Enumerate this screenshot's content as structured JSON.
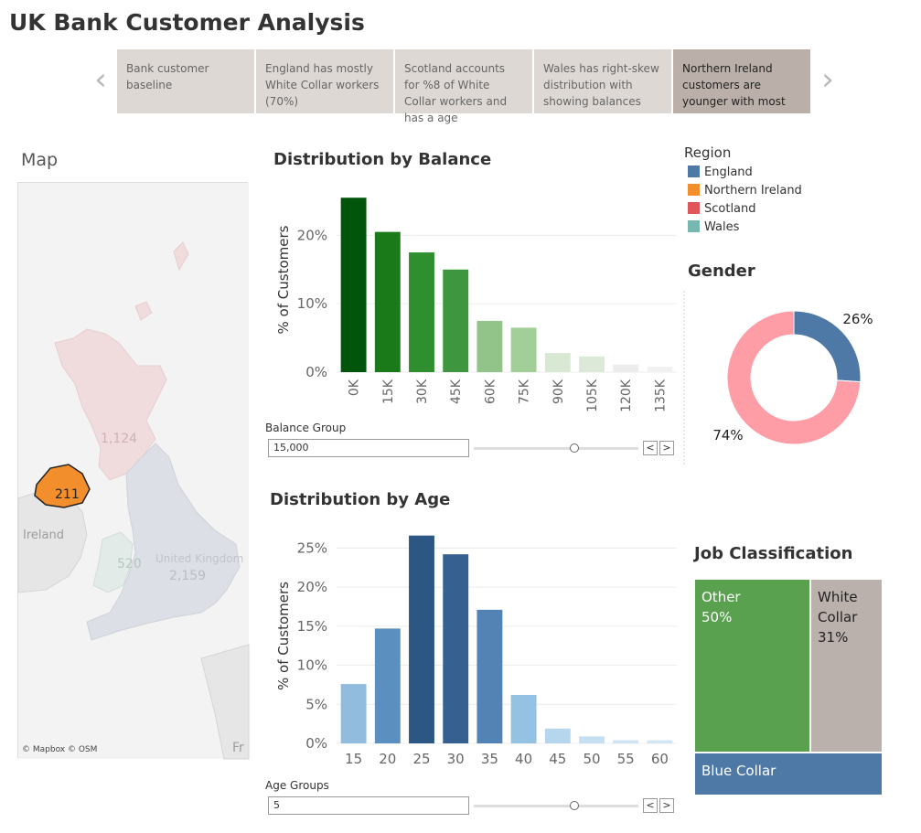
{
  "title": "UK Bank Customer Analysis",
  "story_points": [
    {
      "label": "Bank customer baseline"
    },
    {
      "label": "England has mostly White Collar workers (70%)"
    },
    {
      "label": "Scotland accounts for %8 of White Collar workers and has a age"
    },
    {
      "label": "Wales has right-skew distribution with showing balances"
    },
    {
      "label": "Northern Ireland customers are younger with most"
    }
  ],
  "story_nav": {
    "prev": "‹",
    "next": "›"
  },
  "map": {
    "title": "Map",
    "credit": "© Mapbox © OSM",
    "labels": {
      "scotland": "1,124",
      "ni": "211",
      "wales": "520",
      "england": "2,159",
      "ireland": "Ireland",
      "uk": "United Kingdom",
      "fr": "Fr"
    },
    "highlight_color": "#f28e2b"
  },
  "balance": {
    "title": "Distribution by Balance",
    "param_label": "Balance Group",
    "param_value": "15,000",
    "slider_fraction": 0.61
  },
  "age": {
    "title": "Distribution by Age",
    "param_label": "Age Groups",
    "param_value": "5",
    "slider_fraction": 0.61
  },
  "legend": {
    "title": "Region",
    "items": [
      {
        "label": "England",
        "color": "#4e79a7"
      },
      {
        "label": "Northern Ireland",
        "color": "#f28e2b"
      },
      {
        "label": "Scotland",
        "color": "#e15759"
      },
      {
        "label": "Wales",
        "color": "#76b7b2"
      }
    ]
  },
  "gender_title": "Gender",
  "job": {
    "title": "Job Classification",
    "cells": [
      {
        "label": "Other",
        "value": "50%",
        "color": "#59a14f"
      },
      {
        "label": "White Collar",
        "value": "31%",
        "color": "#bab0ac"
      },
      {
        "label": "Blue Collar",
        "value": "",
        "color": "#4e79a7"
      }
    ]
  },
  "chart_data": [
    {
      "type": "bar",
      "title": "Distribution by Balance",
      "xlabel": "",
      "ylabel": "% of Customers",
      "categories": [
        "0K",
        "15K",
        "30K",
        "45K",
        "60K",
        "75K",
        "90K",
        "105K",
        "120K",
        "135K"
      ],
      "values": [
        25.5,
        20.5,
        17.5,
        15.0,
        7.5,
        6.5,
        2.8,
        2.3,
        1.1,
        0.8
      ],
      "colors": [
        "#00550a",
        "#1a7a1a",
        "#2f8f2f",
        "#3e963e",
        "#92c48a",
        "#a2cf98",
        "#d8e8d3",
        "#dde9d8",
        "#ececec",
        "#f1f1f1"
      ],
      "yticks": [
        0,
        10,
        20
      ],
      "ytick_labels": [
        "0%",
        "10%",
        "20%"
      ],
      "ylim": [
        0,
        27
      ]
    },
    {
      "type": "bar",
      "title": "Distribution by Age",
      "xlabel": "",
      "ylabel": "% of Customers",
      "categories": [
        "15",
        "20",
        "25",
        "30",
        "35",
        "40",
        "45",
        "50",
        "55",
        "60"
      ],
      "values": [
        7.6,
        14.7,
        26.6,
        24.2,
        17.1,
        6.2,
        1.9,
        0.9,
        0.4,
        0.4
      ],
      "colors": [
        "#92bcde",
        "#5b8fc0",
        "#2c5785",
        "#36608f",
        "#5283b4",
        "#93c2e2",
        "#b6d6ee",
        "#c6dff1",
        "#cfe3f3",
        "#d2e5f4"
      ],
      "yticks": [
        0,
        5,
        10,
        15,
        20,
        25
      ],
      "ytick_labels": [
        "0%",
        "5%",
        "10%",
        "15%",
        "20%",
        "25%"
      ],
      "ylim": [
        0,
        27.5
      ]
    },
    {
      "type": "pie",
      "title": "Gender",
      "slices": [
        {
          "label": "26%",
          "value": 26,
          "color": "#4e79a7"
        },
        {
          "label": "74%",
          "value": 74,
          "color": "#ff9da7"
        }
      ]
    },
    {
      "type": "table",
      "title": "Job Classification",
      "categories": [
        "Other",
        "White Collar",
        "Blue Collar"
      ],
      "values": [
        50,
        31,
        19
      ]
    }
  ]
}
